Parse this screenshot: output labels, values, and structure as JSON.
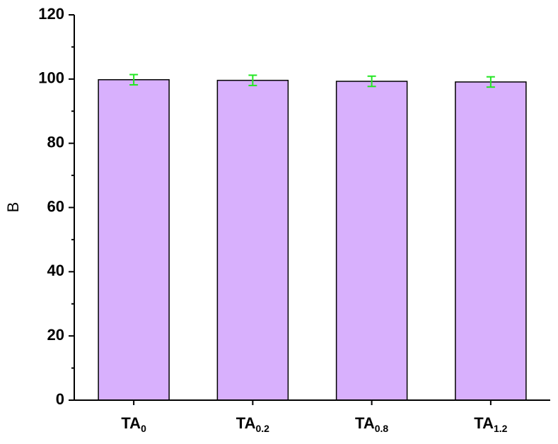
{
  "chart_data": {
    "type": "bar",
    "y_label": "B",
    "categories": [
      {
        "text": "TA",
        "subscript": "0"
      },
      {
        "text": "TA",
        "subscript": "0.2"
      },
      {
        "text": "TA",
        "subscript": "0.8"
      },
      {
        "text": "TA",
        "subscript": "1.2"
      }
    ],
    "values": [
      99.8,
      99.6,
      99.3,
      99.1
    ],
    "errors": [
      1.6,
      1.6,
      1.6,
      1.6
    ],
    "color": "#d8b0fd",
    "error_color": "#22e622",
    "ylim": [
      0,
      120
    ],
    "yticks": [
      0,
      20,
      40,
      60,
      80,
      100,
      120
    ],
    "yminorticks": [
      10,
      30,
      50,
      70,
      90,
      110
    ]
  }
}
